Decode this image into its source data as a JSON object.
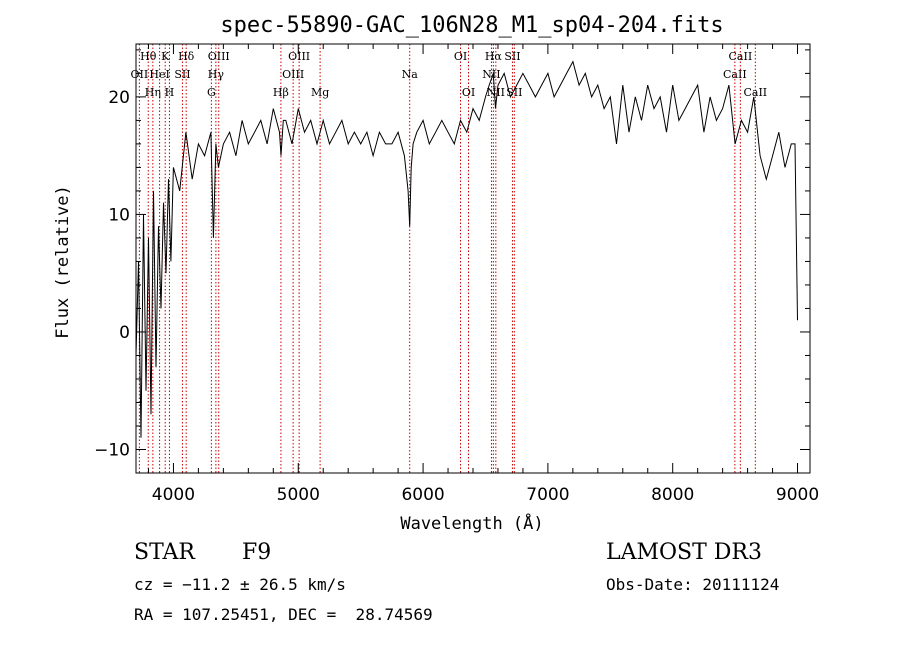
{
  "chart_data": {
    "type": "line",
    "title": "spec-55890-GAC_106N28_M1_sp04-204.fits",
    "xlabel": "Wavelength (Å)",
    "ylabel": "Flux (relative)",
    "xlim": [
      3700,
      9100
    ],
    "ylim": [
      -12,
      24.5
    ],
    "xticks": [
      4000,
      5000,
      6000,
      7000,
      8000,
      9000
    ],
    "yticks": [
      -10,
      0,
      10,
      20
    ],
    "series": [
      {
        "name": "flux",
        "x": [
          3700,
          3720,
          3740,
          3760,
          3780,
          3800,
          3820,
          3840,
          3860,
          3880,
          3900,
          3920,
          3940,
          3960,
          3980,
          4000,
          4050,
          4100,
          4150,
          4200,
          4250,
          4300,
          4320,
          4340,
          4360,
          4400,
          4450,
          4500,
          4550,
          4600,
          4650,
          4700,
          4750,
          4800,
          4850,
          4862,
          4880,
          4900,
          4950,
          5000,
          5050,
          5100,
          5150,
          5175,
          5200,
          5250,
          5300,
          5350,
          5400,
          5450,
          5500,
          5550,
          5600,
          5650,
          5700,
          5750,
          5800,
          5850,
          5880,
          5893,
          5905,
          5920,
          5950,
          6000,
          6050,
          6100,
          6150,
          6200,
          6250,
          6300,
          6350,
          6400,
          6450,
          6500,
          6530,
          6563,
          6580,
          6600,
          6650,
          6700,
          6750,
          6800,
          6850,
          6900,
          6950,
          7000,
          7050,
          7100,
          7150,
          7200,
          7250,
          7300,
          7350,
          7400,
          7450,
          7500,
          7550,
          7600,
          7650,
          7700,
          7750,
          7800,
          7850,
          7900,
          7950,
          8000,
          8050,
          8100,
          8150,
          8200,
          8250,
          8300,
          8350,
          8400,
          8450,
          8500,
          8550,
          8600,
          8650,
          8700,
          8750,
          8800,
          8850,
          8900,
          8950,
          8980,
          9000
        ],
        "y": [
          -2,
          6,
          -9,
          10,
          -5,
          8,
          -7,
          12,
          -3,
          9,
          2,
          11,
          5,
          13,
          6,
          14,
          12,
          17,
          13,
          16,
          15,
          17,
          8,
          16,
          14,
          16,
          17,
          15,
          18,
          16,
          17,
          18,
          16,
          19,
          17,
          15,
          18,
          18,
          16,
          19,
          17,
          18,
          16,
          17,
          18,
          16,
          17,
          18,
          16,
          17,
          16,
          17,
          15,
          17,
          16,
          16,
          17,
          15,
          12,
          9,
          14,
          16,
          17,
          18,
          16,
          17,
          18,
          17,
          16,
          18,
          17,
          19,
          18,
          20,
          21,
          22,
          19,
          21,
          22,
          20,
          21,
          22,
          21,
          20,
          21,
          22,
          20,
          21,
          22,
          23,
          21,
          22,
          20,
          21,
          19,
          20,
          16,
          21,
          17,
          20,
          18,
          21,
          19,
          20,
          17,
          21,
          18,
          19,
          20,
          21,
          17,
          20,
          18,
          19,
          21,
          16,
          18,
          17,
          20,
          15,
          13,
          15,
          17,
          14,
          16,
          16,
          1
        ]
      }
    ],
    "lines": [
      {
        "name": "OII",
        "wavelength": 3727,
        "row": 1
      },
      {
        "name": "Hθ",
        "wavelength": 3798,
        "row": 0
      },
      {
        "name": "Hη",
        "wavelength": 3835,
        "row": 2
      },
      {
        "name": "HeI",
        "wavelength": 3889,
        "row": 1
      },
      {
        "name": "K",
        "wavelength": 3934,
        "row": 0
      },
      {
        "name": "H",
        "wavelength": 3968,
        "row": 2
      },
      {
        "name": "SII",
        "wavelength": 4072,
        "row": 1
      },
      {
        "name": "Hδ",
        "wavelength": 4102,
        "row": 0
      },
      {
        "name": "G",
        "wavelength": 4304,
        "row": 2
      },
      {
        "name": "Hγ",
        "wavelength": 4340,
        "row": 1
      },
      {
        "name": "OIII",
        "wavelength": 4363,
        "row": 0
      },
      {
        "name": "Hβ",
        "wavelength": 4861,
        "row": 2
      },
      {
        "name": "OIII",
        "wavelength": 4959,
        "row": 1
      },
      {
        "name": "OIII",
        "wavelength": 5007,
        "row": 0
      },
      {
        "name": "Mg",
        "wavelength": 5175,
        "row": 2
      },
      {
        "name": "Na",
        "wavelength": 5893,
        "row": 1
      },
      {
        "name": "OI",
        "wavelength": 6300,
        "row": 0
      },
      {
        "name": "OI",
        "wavelength": 6364,
        "row": 2
      },
      {
        "name": "NII",
        "wavelength": 6548,
        "row": 1
      },
      {
        "name": "Hα",
        "wavelength": 6563,
        "row": 0
      },
      {
        "name": "NII",
        "wavelength": 6583,
        "row": 2
      },
      {
        "name": "SII",
        "wavelength": 6716,
        "row": 0
      },
      {
        "name": "SII",
        "wavelength": 6731,
        "row": 2
      },
      {
        "name": "CaII",
        "wavelength": 8498,
        "row": 1
      },
      {
        "name": "CaII",
        "wavelength": 8542,
        "row": 0
      },
      {
        "name": "CaII",
        "wavelength": 8662,
        "row": 2
      }
    ]
  },
  "info": {
    "object_class": "STAR",
    "subclass": "F9",
    "survey": "LAMOST DR3",
    "redshift": "cz = −11.2 ± 26.5 km/s",
    "obs_date": "Obs-Date: 20111124",
    "coords": "RA = 107.25451, DEC =  28.74569"
  },
  "colors": {
    "spectrum": "#000000",
    "line_marker": "#cc0000",
    "axis": "#000000",
    "background": "#ffffff"
  }
}
